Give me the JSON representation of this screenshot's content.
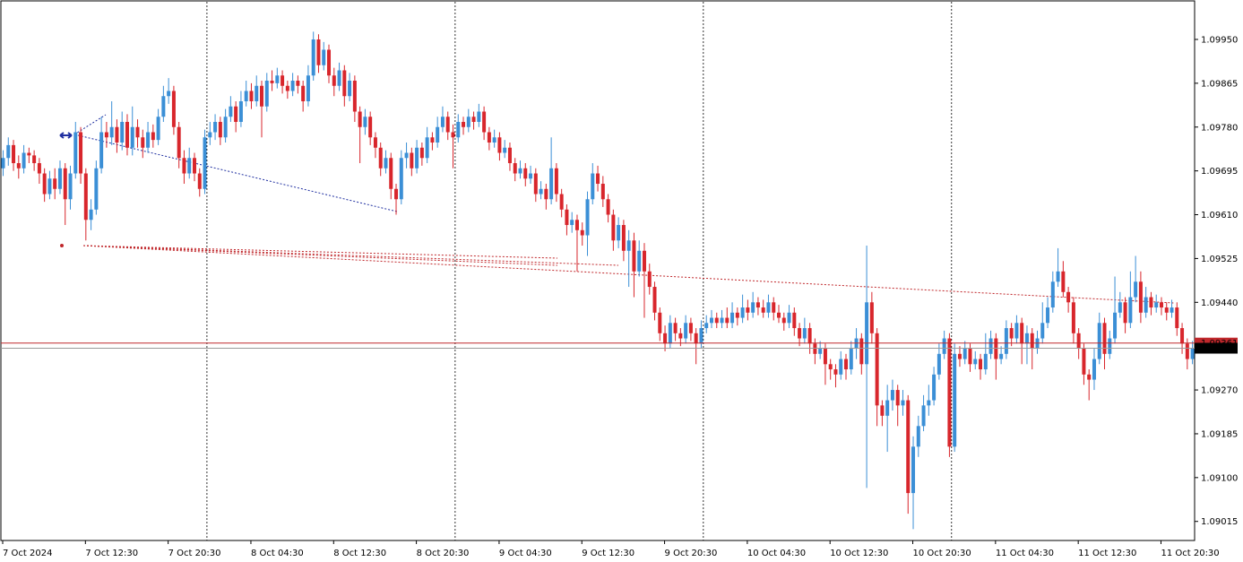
{
  "chart_data": {
    "type": "candlestick",
    "symbol_bull_color": "#3b8fd6",
    "symbol_bear_color": "#d8262c",
    "ylim": [
      1.08978,
      1.10023
    ],
    "yticks": [
      {
        "value": 1.0995,
        "label": "1.09950"
      },
      1.09865,
      {
        "value": 1.0978,
        "label": "1.09780"
      },
      1.09695,
      {
        "value": 1.0961,
        "label": "1.09610"
      },
      1.09525,
      {
        "value": 1.0944,
        "label": "1.09440"
      },
      {
        "value": 1.0927,
        "label": "1.09270"
      },
      1.09185,
      {
        "value": 1.091,
        "label": "1.09100"
      },
      1.09015
    ],
    "bid": 1.09351,
    "ask": 1.09361,
    "categories": [
      "7 Oct 2024",
      null,
      null,
      null,
      null,
      null,
      null,
      null,
      null,
      null,
      null,
      null,
      null,
      null,
      null,
      null,
      "7 Oct 12:30",
      null,
      null,
      null,
      null,
      null,
      null,
      null,
      null,
      null,
      null,
      null,
      null,
      null,
      null,
      null,
      "7 Oct 20:30",
      null,
      null,
      null,
      null,
      null,
      null,
      null,
      null,
      null,
      null,
      null,
      null,
      null,
      null,
      null,
      "8 Oct 04:30",
      null,
      null,
      null,
      null,
      null,
      null,
      null,
      null,
      null,
      null,
      null,
      null,
      null,
      null,
      null,
      "8 Oct 12:30",
      null,
      null,
      null,
      null,
      null,
      null,
      null,
      null,
      null,
      null,
      null,
      null,
      null,
      null,
      null,
      "8 Oct 20:30",
      null,
      null,
      null,
      null,
      null,
      null,
      null,
      null,
      null,
      null,
      null,
      null,
      null,
      null,
      null,
      "9 Oct 04:30",
      null,
      null,
      null,
      null,
      null,
      null,
      null,
      null,
      null,
      null,
      null,
      null,
      null,
      null,
      null,
      "9 Oct 12:30",
      null,
      null,
      null,
      null,
      null,
      null,
      null,
      null,
      null,
      null,
      null,
      null,
      null,
      null,
      null,
      "9 Oct 20:30",
      null,
      null,
      null,
      null,
      null,
      null,
      null,
      null,
      null,
      null,
      null,
      null,
      null,
      null,
      null,
      "10 Oct 04:30",
      null,
      null,
      null,
      null,
      null,
      null,
      null,
      null,
      null,
      null,
      null,
      null,
      null,
      null,
      null,
      "10 Oct 12:30",
      null,
      null,
      null,
      null,
      null,
      null,
      null,
      null,
      null,
      null,
      null,
      null,
      null,
      null,
      null,
      "10 Oct 20:30",
      null,
      null,
      null,
      null,
      null,
      null,
      null,
      null,
      null,
      null,
      null,
      null,
      null,
      null,
      null,
      "11 Oct 04:30",
      null,
      null,
      null,
      null,
      null,
      null,
      null,
      null,
      null,
      null,
      null,
      null,
      null,
      null,
      null,
      "11 Oct 12:30",
      null,
      null,
      null,
      null,
      null,
      null,
      null,
      null,
      null,
      null,
      null,
      null,
      null,
      null,
      null,
      "11 Oct 20:30",
      null,
      null,
      null,
      null,
      null,
      null
    ],
    "open": [
      1.097,
      1.0972,
      1.09745,
      1.0971,
      1.097,
      1.0973,
      1.09725,
      1.0971,
      1.0969,
      1.0965,
      1.0968,
      1.0966,
      1.097,
      1.0964,
      1.0969,
      1.0977,
      1.0969,
      1.096,
      1.0962,
      1.097,
      1.0977,
      1.0976,
      1.0978,
      1.0975,
      1.0979,
      1.0974,
      1.0978,
      1.0976,
      1.0974,
      1.0977,
      1.09755,
      1.098,
      1.0984,
      1.0985,
      1.0978,
      1.0972,
      1.0969,
      1.0972,
      1.0969,
      1.0966,
      1.0976,
      1.0977,
      1.0979,
      1.0976,
      1.098,
      1.0982,
      1.0979,
      1.0983,
      1.0985,
      1.0983,
      1.0986,
      1.0982,
      1.0987,
      1.09865,
      1.0988,
      1.0986,
      1.0985,
      1.0987,
      1.0986,
      1.0983,
      1.0988,
      1.0995,
      1.099,
      1.0993,
      1.0988,
      1.0986,
      1.0989,
      1.0984,
      1.0987,
      1.0981,
      1.0978,
      1.098,
      1.0976,
      1.0974,
      1.097,
      1.0972,
      1.0966,
      1.0964,
      1.0972,
      1.0973,
      1.097,
      1.0974,
      1.0972,
      1.0976,
      1.0975,
      1.0978,
      1.098,
      1.0977,
      1.0976,
      1.0979,
      1.0978,
      1.098,
      1.0979,
      1.0981,
      1.0977,
      1.0975,
      1.0976,
      1.0973,
      1.0974,
      1.0971,
      1.0969,
      1.097,
      1.0968,
      1.0969,
      1.0965,
      1.0966,
      1.0964,
      1.097,
      1.0965,
      1.0962,
      1.0959,
      1.096,
      1.0958,
      1.0957,
      1.0964,
      1.0969,
      1.0967,
      1.0964,
      1.0961,
      1.0956,
      1.0959,
      1.0954,
      1.0956,
      1.095,
      1.0954,
      1.095,
      1.0947,
      1.0942,
      1.0938,
      1.0936,
      1.094,
      1.0938,
      1.0937,
      1.094,
      1.0938,
      1.0936,
      1.0939,
      1.094,
      1.0941,
      1.094,
      1.0941,
      1.094,
      1.0942,
      1.0941,
      1.0943,
      1.0942,
      1.0944,
      1.0943,
      1.0942,
      1.0944,
      1.0942,
      1.0941,
      1.094,
      1.0942,
      1.0939,
      1.0937,
      1.0939,
      1.0936,
      1.0934,
      1.0935,
      1.0932,
      1.0931,
      1.093,
      1.0933,
      1.0931,
      1.0935,
      1.0937,
      1.0932,
      1.0944,
      1.0938,
      1.0924,
      1.0922,
      1.0925,
      1.0927,
      1.0924,
      1.0925,
      1.0907,
      1.0916,
      1.092,
      1.0924,
      1.0925,
      1.093,
      1.0934,
      1.0937,
      1.0916,
      1.0934,
      1.0933,
      1.0935,
      1.0932,
      1.0933,
      1.0931,
      1.0934,
      1.0937,
      1.0933,
      1.0934,
      1.0939,
      1.0937,
      1.094,
      1.0936,
      1.0938,
      1.0935,
      1.0937,
      1.094,
      1.0943,
      1.0948,
      1.095,
      1.0946,
      1.0944,
      1.0938,
      1.0935,
      1.093,
      1.0929,
      1.0933,
      1.094,
      1.0934,
      1.0937,
      1.0942,
      1.0944,
      1.094,
      1.0945,
      1.0948,
      1.0942,
      1.0945,
      1.0943,
      1.0944,
      1.0943,
      1.0942,
      1.0943,
      1.0939,
      1.0936,
      1.0933
    ],
    "high": [
      1.09735,
      1.0976,
      1.09755,
      1.09725,
      1.09745,
      1.0974,
      1.09735,
      1.0972,
      1.097,
      1.09695,
      1.097,
      1.09715,
      1.0971,
      1.09705,
      1.0979,
      1.0978,
      1.097,
      1.0964,
      1.09715,
      1.098,
      1.0979,
      1.0983,
      1.09795,
      1.0981,
      1.09805,
      1.0982,
      1.09795,
      1.09775,
      1.0979,
      1.09785,
      1.09815,
      1.0986,
      1.09875,
      1.0986,
      1.0979,
      1.09735,
      1.0974,
      1.0973,
      1.097,
      1.09775,
      1.0979,
      1.09805,
      1.098,
      1.09815,
      1.0984,
      1.0983,
      1.0985,
      1.0987,
      1.09865,
      1.0988,
      1.0987,
      1.09885,
      1.0989,
      1.09895,
      1.0989,
      1.0987,
      1.09885,
      1.0988,
      1.0987,
      1.099,
      1.09965,
      1.0996,
      1.09945,
      1.0994,
      1.09895,
      1.09905,
      1.099,
      1.09885,
      1.0988,
      1.0982,
      1.09815,
      1.0981,
      1.0977,
      1.0975,
      1.09735,
      1.0973,
      1.0967,
      1.09735,
      1.0975,
      1.0974,
      1.09755,
      1.0975,
      1.0978,
      1.0977,
      1.098,
      1.0982,
      1.0981,
      1.09785,
      1.09805,
      1.098,
      1.09815,
      1.0981,
      1.09825,
      1.0982,
      1.0978,
      1.09775,
      1.0977,
      1.09755,
      1.0975,
      1.0972,
      1.09715,
      1.0971,
      1.09705,
      1.097,
      1.09675,
      1.0967,
      1.0976,
      1.0971,
      1.0966,
      1.0963,
      1.09615,
      1.0961,
      1.09595,
      1.09655,
      1.0971,
      1.09705,
      1.09685,
      1.0965,
      1.0962,
      1.09605,
      1.096,
      1.0958,
      1.09575,
      1.0956,
      1.09555,
      1.09515,
      1.0948,
      1.0943,
      1.09395,
      1.09415,
      1.0941,
      1.0939,
      1.09415,
      1.0941,
      1.0939,
      1.09405,
      1.09415,
      1.09425,
      1.0942,
      1.09425,
      1.0943,
      1.0944,
      1.0943,
      1.09455,
      1.09445,
      1.0946,
      1.0945,
      1.09445,
      1.09455,
      1.0945,
      1.09435,
      1.0942,
      1.09435,
      1.0943,
      1.094,
      1.0941,
      1.094,
      1.0937,
      1.09365,
      1.0936,
      1.0933,
      1.0932,
      1.09345,
      1.0934,
      1.09365,
      1.0939,
      1.0938,
      1.0955,
      1.0946,
      1.0939,
      1.0925,
      1.0928,
      1.0929,
      1.0928,
      1.0927,
      1.0926,
      1.0918,
      1.0922,
      1.0926,
      1.0928,
      1.09315,
      1.0936,
      1.09385,
      1.0938,
      1.0936,
      1.09355,
      1.09365,
      1.0936,
      1.09345,
      1.0934,
      1.0938,
      1.09385,
      1.0938,
      1.09355,
      1.09405,
      1.094,
      1.09415,
      1.0941,
      1.09395,
      1.0939,
      1.09385,
      1.0944,
      1.0945,
      1.095,
      1.09545,
      1.0952,
      1.0947,
      1.0945,
      1.0939,
      1.0936,
      1.0931,
      1.0935,
      1.0942,
      1.0941,
      1.09385,
      1.0949,
      1.0946,
      1.0945,
      1.095,
      1.0953,
      1.095,
      1.0947,
      1.0946,
      1.09455,
      1.0945,
      1.0944,
      1.09445,
      1.0944,
      1.094,
      1.0937,
      1.09365
    ],
    "low": [
      1.09685,
      1.09705,
      1.09695,
      1.0968,
      1.0969,
      1.0971,
      1.09695,
      1.0967,
      1.09635,
      1.0964,
      1.0964,
      1.0965,
      1.0959,
      1.0962,
      1.0968,
      1.0967,
      1.0956,
      1.0958,
      1.0961,
      1.0969,
      1.0974,
      1.09745,
      1.0973,
      1.09735,
      1.09725,
      1.09725,
      1.0974,
      1.0972,
      1.0973,
      1.0974,
      1.09745,
      1.0979,
      1.09825,
      1.09765,
      1.097,
      1.0967,
      1.0968,
      1.09675,
      1.09645,
      1.0965,
      1.09745,
      1.09755,
      1.09745,
      1.0975,
      1.0979,
      1.0977,
      1.0978,
      1.0982,
      1.09815,
      1.0982,
      1.0976,
      1.0981,
      1.0985,
      1.09855,
      1.09845,
      1.09835,
      1.0984,
      1.09845,
      1.0981,
      1.0982,
      1.0987,
      1.09885,
      1.0989,
      1.09865,
      1.0984,
      1.0985,
      1.0982,
      1.0983,
      1.0979,
      1.0971,
      1.09765,
      1.09745,
      1.0972,
      1.09685,
      1.0969,
      1.0964,
      1.0961,
      1.0963,
      1.097,
      1.09685,
      1.0969,
      1.09705,
      1.0971,
      1.09735,
      1.0974,
      1.0977,
      1.09755,
      1.097,
      1.0975,
      1.09765,
      1.0977,
      1.09775,
      1.0978,
      1.09755,
      1.09735,
      1.0974,
      1.09715,
      1.0972,
      1.09695,
      1.09675,
      1.0968,
      1.09665,
      1.0967,
      1.09635,
      1.0964,
      1.0962,
      1.0963,
      1.09635,
      1.09605,
      1.0957,
      1.09575,
      1.095,
      1.0955,
      1.0953,
      1.0963,
      1.09655,
      1.09625,
      1.09595,
      1.0954,
      1.09545,
      1.0952,
      1.0947,
      1.0945,
      1.0949,
      1.0941,
      1.09455,
      1.09405,
      1.09365,
      1.09345,
      1.0935,
      1.09365,
      1.09355,
      1.0936,
      1.09365,
      1.0932,
      1.0935,
      1.0938,
      1.0939,
      1.0939,
      1.0939,
      1.0939,
      1.0939,
      1.09395,
      1.094,
      1.09405,
      1.0941,
      1.09415,
      1.0941,
      1.0941,
      1.09405,
      1.094,
      1.09385,
      1.0939,
      1.09375,
      1.09355,
      1.0936,
      1.0934,
      1.0932,
      1.0933,
      1.0928,
      1.0929,
      1.09275,
      1.0929,
      1.0929,
      1.093,
      1.0933,
      1.093,
      1.0908,
      1.0936,
      1.092,
      1.092,
      1.0915,
      1.0923,
      1.092,
      1.0922,
      1.0903,
      1.09,
      1.0914,
      1.0919,
      1.0922,
      1.0924,
      1.0929,
      1.0933,
      1.0914,
      1.0915,
      1.09315,
      1.0932,
      1.09305,
      1.0931,
      1.0929,
      1.093,
      1.0933,
      1.0929,
      1.0932,
      1.0933,
      1.09355,
      1.0936,
      1.0932,
      1.0932,
      1.0931,
      1.0934,
      1.0936,
      1.0939,
      1.0942,
      1.0947,
      1.0945,
      1.0942,
      1.0936,
      1.0933,
      1.0928,
      1.0925,
      1.0927,
      1.0932,
      1.0931,
      1.0933,
      1.0936,
      1.0941,
      1.0938,
      1.0939,
      1.0944,
      1.094,
      1.0941,
      1.09415,
      1.0942,
      1.09415,
      1.09405,
      1.0941,
      1.09375,
      1.0934,
      1.0931,
      1.0932
    ],
    "close": [
      1.0972,
      1.09745,
      1.0971,
      1.097,
      1.0973,
      1.09725,
      1.0971,
      1.0969,
      1.0965,
      1.0968,
      1.0966,
      1.097,
      1.0964,
      1.0969,
      1.0977,
      1.0969,
      1.096,
      1.0962,
      1.097,
      1.0977,
      1.0976,
      1.0978,
      1.0975,
      1.0979,
      1.0974,
      1.0978,
      1.0976,
      1.0974,
      1.0977,
      1.09755,
      1.098,
      1.0984,
      1.0985,
      1.0978,
      1.0972,
      1.0969,
      1.0972,
      1.0969,
      1.0966,
      1.0976,
      1.0977,
      1.0979,
      1.0976,
      1.098,
      1.0982,
      1.0979,
      1.0983,
      1.0985,
      1.0983,
      1.0986,
      1.0982,
      1.0987,
      1.09865,
      1.0988,
      1.0986,
      1.0985,
      1.0987,
      1.0986,
      1.0983,
      1.0988,
      1.0995,
      1.099,
      1.0993,
      1.0988,
      1.0986,
      1.0989,
      1.0984,
      1.0987,
      1.0981,
      1.0978,
      1.098,
      1.0976,
      1.0974,
      1.097,
      1.0972,
      1.0966,
      1.0964,
      1.0972,
      1.0973,
      1.097,
      1.0974,
      1.0972,
      1.0976,
      1.0975,
      1.0978,
      1.098,
      1.0977,
      1.0976,
      1.0979,
      1.0978,
      1.098,
      1.0979,
      1.0981,
      1.0977,
      1.0975,
      1.0976,
      1.0973,
      1.0974,
      1.0971,
      1.0969,
      1.097,
      1.0968,
      1.0969,
      1.0965,
      1.0966,
      1.0964,
      1.097,
      1.0965,
      1.0962,
      1.0959,
      1.096,
      1.0958,
      1.0957,
      1.0964,
      1.0969,
      1.0967,
      1.0964,
      1.0961,
      1.0956,
      1.0959,
      1.0954,
      1.0956,
      1.095,
      1.0954,
      1.095,
      1.0947,
      1.0942,
      1.0938,
      1.0936,
      1.094,
      1.0938,
      1.0937,
      1.094,
      1.0938,
      1.0936,
      1.0939,
      1.094,
      1.0941,
      1.094,
      1.0941,
      1.094,
      1.0942,
      1.0941,
      1.0943,
      1.0942,
      1.0944,
      1.0943,
      1.0942,
      1.0944,
      1.0942,
      1.0941,
      1.094,
      1.0942,
      1.0939,
      1.0937,
      1.0939,
      1.0936,
      1.0934,
      1.0935,
      1.0932,
      1.0931,
      1.093,
      1.0933,
      1.0931,
      1.0935,
      1.0937,
      1.0932,
      1.0944,
      1.0938,
      1.0924,
      1.0922,
      1.0925,
      1.0927,
      1.0924,
      1.0925,
      1.0907,
      1.0916,
      1.092,
      1.0924,
      1.0925,
      1.093,
      1.0934,
      1.0937,
      1.0916,
      1.0934,
      1.0933,
      1.0935,
      1.0932,
      1.0933,
      1.0931,
      1.0934,
      1.0937,
      1.0933,
      1.0934,
      1.0939,
      1.0937,
      1.094,
      1.0936,
      1.0938,
      1.0935,
      1.0937,
      1.094,
      1.0943,
      1.0948,
      1.095,
      1.0946,
      1.0944,
      1.0938,
      1.0935,
      1.093,
      1.0929,
      1.0933,
      1.094,
      1.0934,
      1.0937,
      1.0942,
      1.0944,
      1.094,
      1.0945,
      1.0948,
      1.0942,
      1.0945,
      1.0943,
      1.0944,
      1.0943,
      1.0942,
      1.0943,
      1.0939,
      1.0936,
      1.0933,
      1.09351
    ]
  }
}
